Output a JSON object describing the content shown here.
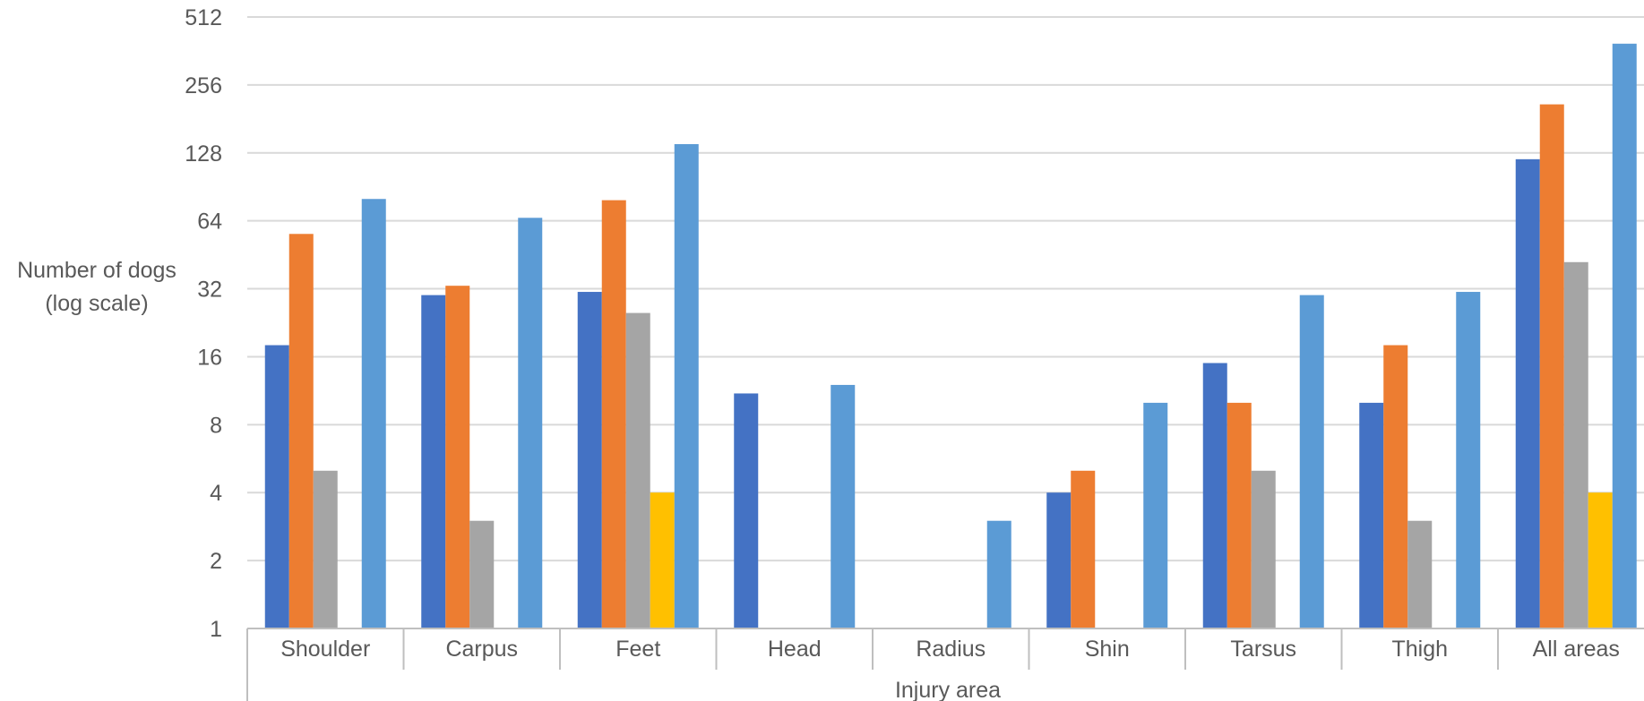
{
  "chart_data": {
    "type": "bar",
    "title": "",
    "xlabel": "Injury area",
    "ylabel_lines": [
      "Number of dogs",
      "(log scale)"
    ],
    "yscale": "log2",
    "ylim": [
      1,
      512
    ],
    "yticks": [
      1,
      2,
      4,
      8,
      16,
      32,
      64,
      128,
      256,
      512
    ],
    "ytick_labels": [
      "1",
      "2",
      "4",
      "8",
      "16",
      "32",
      "64",
      "128",
      "256",
      "512"
    ],
    "grid": true,
    "legend": "none",
    "categories": [
      "Shoulder",
      "Carpus",
      "Feet",
      "Head",
      "Radius",
      "Shin",
      "Tarsus",
      "Thigh",
      "All areas"
    ],
    "series": [
      {
        "color": "#4472C4",
        "values": [
          18,
          30,
          31,
          11,
          null,
          4,
          15,
          10,
          120
        ]
      },
      {
        "color": "#ED7D31",
        "values": [
          56,
          33,
          79,
          null,
          null,
          5,
          10,
          18,
          210
        ]
      },
      {
        "color": "#A5A5A5",
        "values": [
          5,
          3,
          25,
          null,
          null,
          null,
          5,
          3,
          42
        ]
      },
      {
        "color": "#FFC000",
        "values": [
          null,
          null,
          4,
          null,
          null,
          null,
          null,
          null,
          4
        ]
      },
      {
        "color": "#5B9BD5",
        "values": [
          80,
          66,
          140,
          12,
          3,
          10,
          30,
          31,
          390
        ]
      }
    ]
  }
}
